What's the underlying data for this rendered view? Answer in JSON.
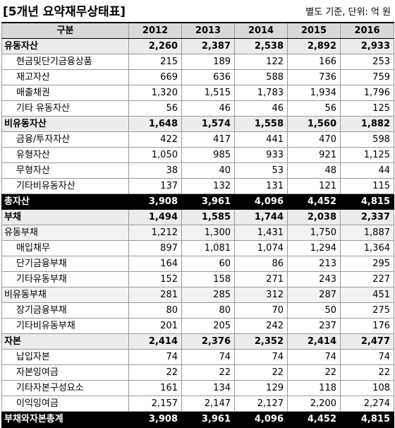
{
  "title": "[5개년 요약재무상태표]",
  "note": "별도 기준, 단위: 억 원",
  "columns": [
    "구분",
    "2012",
    "2013",
    "2014",
    "2015",
    "2016"
  ],
  "rows": [
    {
      "label": "유동자산",
      "level": "major",
      "values": [
        "2,260",
        "2,387",
        "2,538",
        "2,892",
        "2,933"
      ]
    },
    {
      "label": "현금및단기금융상품",
      "level": "sub",
      "values": [
        "215",
        "189",
        "122",
        "166",
        "253"
      ]
    },
    {
      "label": "재고자산",
      "level": "sub",
      "values": [
        "669",
        "636",
        "588",
        "736",
        "759"
      ]
    },
    {
      "label": "매출채권",
      "level": "sub",
      "values": [
        "1,320",
        "1,515",
        "1,783",
        "1,934",
        "1,796"
      ]
    },
    {
      "label": "기타 유동자산",
      "level": "sub",
      "values": [
        "56",
        "46",
        "46",
        "56",
        "125"
      ]
    },
    {
      "label": "비유동자산",
      "level": "major",
      "values": [
        "1,648",
        "1,574",
        "1,558",
        "1,560",
        "1,882"
      ]
    },
    {
      "label": "금융/투자자산",
      "level": "sub",
      "values": [
        "422",
        "417",
        "441",
        "470",
        "598"
      ]
    },
    {
      "label": "유형자산",
      "level": "sub",
      "values": [
        "1,050",
        "985",
        "933",
        "921",
        "1,125"
      ]
    },
    {
      "label": "무형자산",
      "level": "sub",
      "values": [
        "38",
        "40",
        "53",
        "48",
        "44"
      ]
    },
    {
      "label": "기타비유동자산",
      "level": "sub",
      "values": [
        "137",
        "132",
        "131",
        "121",
        "115"
      ]
    },
    {
      "label": "총자산",
      "level": "total",
      "values": [
        "3,908",
        "3,961",
        "4,096",
        "4,452",
        "4,815"
      ]
    },
    {
      "label": "부채",
      "level": "major",
      "values": [
        "1,494",
        "1,585",
        "1,744",
        "2,038",
        "2,337"
      ]
    },
    {
      "label": "유동부채",
      "level": "mid",
      "values": [
        "1,212",
        "1,300",
        "1,431",
        "1,750",
        "1,887"
      ]
    },
    {
      "label": "매입채무",
      "level": "sub",
      "values": [
        "897",
        "1,081",
        "1,074",
        "1,294",
        "1,364"
      ]
    },
    {
      "label": "단기금융부채",
      "level": "sub",
      "values": [
        "164",
        "60",
        "86",
        "213",
        "295"
      ]
    },
    {
      "label": "기타유동부채",
      "level": "sub",
      "values": [
        "152",
        "158",
        "271",
        "243",
        "227"
      ]
    },
    {
      "label": "비유동부채",
      "level": "mid",
      "values": [
        "281",
        "285",
        "312",
        "287",
        "451"
      ]
    },
    {
      "label": "장기금융부채",
      "level": "sub",
      "values": [
        "80",
        "80",
        "70",
        "50",
        "275"
      ]
    },
    {
      "label": "기타비유동부채",
      "level": "sub",
      "values": [
        "201",
        "205",
        "242",
        "237",
        "176"
      ]
    },
    {
      "label": "자본",
      "level": "major",
      "values": [
        "2,414",
        "2,376",
        "2,352",
        "2,414",
        "2,477"
      ]
    },
    {
      "label": "납입자본",
      "level": "sub",
      "values": [
        "74",
        "74",
        "74",
        "74",
        "74"
      ]
    },
    {
      "label": "자본잉여금",
      "level": "sub",
      "values": [
        "22",
        "22",
        "22",
        "22",
        "22"
      ]
    },
    {
      "label": "기타자본구성요소",
      "level": "sub",
      "values": [
        "161",
        "134",
        "129",
        "118",
        "108"
      ]
    },
    {
      "label": "이익잉여금",
      "level": "sub",
      "values": [
        "2,157",
        "2,147",
        "2,127",
        "2,200",
        "2,274"
      ]
    },
    {
      "label": "부채와자본총계",
      "level": "total",
      "values": [
        "3,908",
        "3,961",
        "4,096",
        "4,452",
        "4,815"
      ]
    }
  ]
}
